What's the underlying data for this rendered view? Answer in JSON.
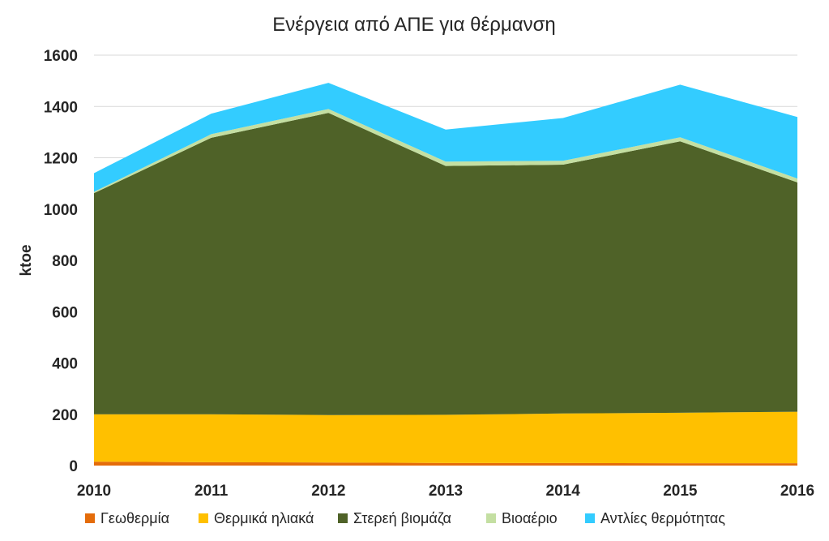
{
  "chart_data": {
    "type": "area",
    "stacked": true,
    "title": "Ενέργεια από ΑΠΕ για θέρμανση",
    "xlabel": "",
    "ylabel": "ktoe",
    "x": [
      "2010",
      "2011",
      "2012",
      "2013",
      "2014",
      "2015",
      "2016"
    ],
    "ylim": [
      0,
      1600
    ],
    "yticks": [
      0,
      200,
      400,
      600,
      800,
      1000,
      1200,
      1400,
      1600
    ],
    "ytick_labels": [
      "0",
      "200",
      "400",
      "600",
      "800",
      "1000",
      "1200",
      "1400",
      "1600"
    ],
    "grid": true,
    "legend_position": "bottom",
    "series": [
      {
        "name": "Γεωθερμία",
        "color": "#E46C0A",
        "values": [
          15,
          13,
          12,
          10,
          10,
          9,
          9
        ]
      },
      {
        "name": "Θερμικά ηλιακά",
        "color": "#FFC000",
        "values": [
          185,
          187,
          185,
          188,
          193,
          197,
          201
        ]
      },
      {
        "name": "Στερεή βιομάζα",
        "color": "#4F6228",
        "values": [
          862,
          1078,
          1178,
          970,
          970,
          1058,
          894
        ]
      },
      {
        "name": "Βιοαέριο",
        "color": "#C4DFA2",
        "values": [
          5,
          14,
          15,
          17,
          15,
          16,
          15
        ]
      },
      {
        "name": "Αντλίες θερμότητας",
        "color": "#33CCFF",
        "values": [
          73,
          80,
          102,
          125,
          167,
          205,
          240
        ]
      }
    ]
  }
}
